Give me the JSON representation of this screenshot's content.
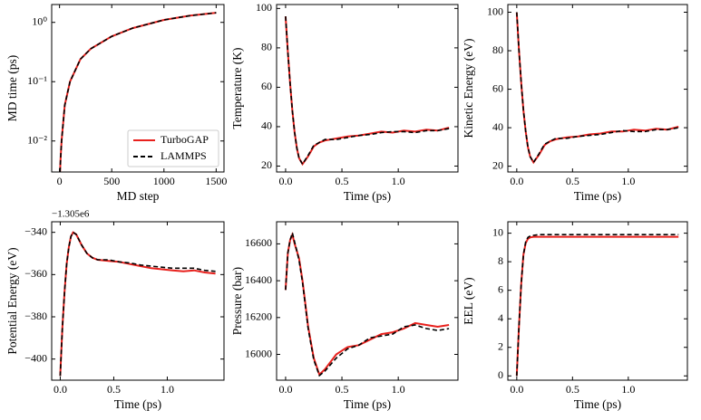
{
  "chart_data": [
    {
      "type": "line",
      "log_y": true,
      "xlabel": "MD step",
      "ylabel": "MD time (ps)",
      "x": [
        5,
        10,
        20,
        50,
        100,
        200,
        300,
        500,
        700,
        1000,
        1250,
        1500
      ],
      "series": [
        {
          "name": "TurboGAP",
          "color": "#e8211d",
          "dashed": false,
          "values": [
            0.003,
            0.005,
            0.01,
            0.04,
            0.1,
            0.24,
            0.36,
            0.58,
            0.8,
            1.1,
            1.3,
            1.45
          ]
        },
        {
          "name": "LAMMPS",
          "color": "#000000",
          "dashed": true,
          "values": [
            0.003,
            0.005,
            0.01,
            0.04,
            0.1,
            0.24,
            0.36,
            0.58,
            0.8,
            1.1,
            1.3,
            1.45
          ]
        }
      ],
      "xlim": [
        -75,
        1575
      ],
      "xticks": [
        0,
        500,
        1000,
        1500
      ],
      "ylim": [
        0.003,
        2
      ],
      "yticks": [
        {
          "value": 0.01,
          "label": "10⁻²"
        },
        {
          "value": 0.1,
          "label": "10⁻¹"
        },
        {
          "value": 1,
          "label": "10⁰"
        }
      ],
      "legend": "lower right"
    },
    {
      "type": "line",
      "xlabel": "Time (ps)",
      "ylabel": "Temperature (K)",
      "x": [
        0,
        0.02,
        0.04,
        0.06,
        0.08,
        0.1,
        0.12,
        0.15,
        0.2,
        0.25,
        0.3,
        0.35,
        0.45,
        0.55,
        0.65,
        0.75,
        0.85,
        0.95,
        1.05,
        1.15,
        1.25,
        1.35,
        1.45
      ],
      "series": [
        {
          "name": "TurboGAP",
          "color": "#e8211d",
          "dashed": false,
          "values": [
            96,
            78,
            62,
            48,
            37,
            29,
            24,
            21,
            25,
            30,
            32,
            33,
            34,
            35,
            35.5,
            36.5,
            37.5,
            37,
            38,
            37.5,
            38.5,
            38,
            39.5
          ]
        },
        {
          "name": "LAMMPS",
          "color": "#000000",
          "dashed": true,
          "values": [
            96,
            78,
            62,
            48,
            37,
            29,
            24,
            21,
            25.5,
            30.5,
            32,
            33.5,
            33.5,
            34.5,
            35.5,
            36,
            37,
            37.5,
            37.5,
            37,
            38,
            38,
            39
          ]
        }
      ],
      "xlim": [
        -0.08,
        1.53
      ],
      "xticks": [
        {
          "value": 0,
          "label": "0.0"
        },
        0.5,
        {
          "value": 1,
          "label": "1.0"
        }
      ],
      "ylim": [
        17,
        102
      ],
      "yticks": [
        20,
        40,
        60,
        80,
        100
      ]
    },
    {
      "type": "line",
      "xlabel": "Time (ps)",
      "ylabel": "Kinetic Energy (eV)",
      "x": [
        0,
        0.02,
        0.04,
        0.06,
        0.08,
        0.1,
        0.12,
        0.15,
        0.2,
        0.25,
        0.3,
        0.35,
        0.45,
        0.55,
        0.65,
        0.75,
        0.85,
        0.95,
        1.05,
        1.15,
        1.25,
        1.35,
        1.45
      ],
      "series": [
        {
          "name": "TurboGAP",
          "color": "#e8211d",
          "dashed": false,
          "values": [
            100,
            80,
            63,
            49,
            38,
            30,
            25,
            22,
            26,
            31,
            33,
            34,
            35,
            35.5,
            36.5,
            37,
            38,
            38,
            39,
            38.5,
            39.5,
            39,
            40.5
          ]
        },
        {
          "name": "LAMMPS",
          "color": "#000000",
          "dashed": true,
          "values": [
            100,
            80,
            63,
            49,
            38,
            30,
            25,
            22,
            26.5,
            31.5,
            33,
            34.5,
            34.5,
            35.5,
            36,
            36.5,
            37.5,
            38.5,
            38,
            38,
            39,
            39,
            40
          ]
        }
      ],
      "xlim": [
        -0.08,
        1.53
      ],
      "xticks": [
        {
          "value": 0,
          "label": "0.0"
        },
        0.5,
        {
          "value": 1,
          "label": "1.0"
        }
      ],
      "ylim": [
        17,
        104
      ],
      "yticks": [
        20,
        40,
        60,
        80,
        100
      ]
    },
    {
      "type": "line",
      "xlabel": "Time (ps)",
      "ylabel": "Potential Energy (eV)",
      "offset_text": "−1.305e6",
      "x": [
        0,
        0.02,
        0.04,
        0.06,
        0.08,
        0.1,
        0.12,
        0.15,
        0.2,
        0.25,
        0.3,
        0.35,
        0.45,
        0.55,
        0.65,
        0.75,
        0.85,
        0.95,
        1.05,
        1.15,
        1.25,
        1.35,
        1.45
      ],
      "series": [
        {
          "name": "TurboGAP",
          "color": "#e8211d",
          "dashed": false,
          "values": [
            -408,
            -385,
            -368,
            -355,
            -347,
            -342,
            -340,
            -341,
            -346,
            -350,
            -352,
            -353,
            -353.5,
            -354,
            -355,
            -356,
            -357,
            -357.5,
            -358,
            -358.5,
            -358,
            -359,
            -359.5
          ]
        },
        {
          "name": "LAMMPS",
          "color": "#000000",
          "dashed": true,
          "values": [
            -408,
            -385,
            -368,
            -355,
            -347,
            -342,
            -340,
            -341,
            -346,
            -350,
            -352,
            -353,
            -353,
            -354,
            -354.5,
            -355.5,
            -356,
            -356.5,
            -357,
            -357,
            -357,
            -358,
            -358.5
          ]
        }
      ],
      "xlim": [
        -0.08,
        1.53
      ],
      "xticks": [
        {
          "value": 0,
          "label": "0.0"
        },
        0.5,
        {
          "value": 1,
          "label": "1.0"
        }
      ],
      "ylim": [
        -410,
        -335
      ],
      "yticks": [
        {
          "value": -400,
          "label": "−400"
        },
        {
          "value": -380,
          "label": "−380"
        },
        {
          "value": -360,
          "label": "−360"
        },
        {
          "value": -340,
          "label": "−340"
        }
      ]
    },
    {
      "type": "line",
      "xlabel": "Time (ps)",
      "ylabel": "Pressure (bar)",
      "x": [
        0,
        0.02,
        0.04,
        0.06,
        0.08,
        0.1,
        0.12,
        0.15,
        0.2,
        0.25,
        0.3,
        0.35,
        0.45,
        0.55,
        0.65,
        0.75,
        0.85,
        0.95,
        1.05,
        1.15,
        1.25,
        1.35,
        1.45
      ],
      "series": [
        {
          "name": "TurboGAP",
          "color": "#e8211d",
          "dashed": false,
          "values": [
            16350,
            16550,
            16620,
            16650,
            16600,
            16560,
            16520,
            16400,
            16150,
            15980,
            15890,
            15920,
            16000,
            16040,
            16050,
            16080,
            16110,
            16120,
            16140,
            16170,
            16160,
            16150,
            16160
          ]
        },
        {
          "name": "LAMMPS",
          "color": "#000000",
          "dashed": true,
          "values": [
            16350,
            16550,
            16620,
            16660,
            16610,
            16560,
            16510,
            16390,
            16140,
            15970,
            15885,
            15910,
            15980,
            16030,
            16050,
            16090,
            16100,
            16110,
            16150,
            16160,
            16140,
            16130,
            16140
          ]
        }
      ],
      "xlim": [
        -0.08,
        1.53
      ],
      "xticks": [
        {
          "value": 0,
          "label": "0.0"
        },
        0.5,
        {
          "value": 1,
          "label": "1.0"
        }
      ],
      "ylim": [
        15860,
        16720
      ],
      "yticks": [
        16000,
        16200,
        16400,
        16600
      ]
    },
    {
      "type": "line",
      "xlabel": "Time (ps)",
      "ylabel": "EEL (eV)",
      "x": [
        0,
        0.02,
        0.04,
        0.06,
        0.08,
        0.1,
        0.12,
        0.15,
        0.2,
        0.25,
        0.3,
        0.35,
        0.45,
        0.55,
        0.65,
        0.75,
        0.85,
        0.95,
        1.05,
        1.15,
        1.25,
        1.35,
        1.45
      ],
      "series": [
        {
          "name": "TurboGAP",
          "color": "#e8211d",
          "dashed": false,
          "values": [
            0,
            3.5,
            6.5,
            8.5,
            9.3,
            9.6,
            9.7,
            9.75,
            9.75,
            9.75,
            9.75,
            9.75,
            9.75,
            9.75,
            9.75,
            9.75,
            9.75,
            9.75,
            9.75,
            9.75,
            9.75,
            9.75,
            9.75
          ]
        },
        {
          "name": "LAMMPS",
          "color": "#000000",
          "dashed": true,
          "values": [
            0,
            3.5,
            6.5,
            8.5,
            9.4,
            9.7,
            9.8,
            9.85,
            9.9,
            9.9,
            9.9,
            9.9,
            9.9,
            9.9,
            9.9,
            9.9,
            9.9,
            9.9,
            9.9,
            9.9,
            9.9,
            9.9,
            9.9
          ]
        }
      ],
      "xlim": [
        -0.08,
        1.53
      ],
      "xticks": [
        {
          "value": 0,
          "label": "0.0"
        },
        0.5,
        {
          "value": 1,
          "label": "1.0"
        }
      ],
      "ylim": [
        -0.3,
        10.8
      ],
      "yticks": [
        0,
        2,
        4,
        6,
        8,
        10
      ]
    }
  ]
}
